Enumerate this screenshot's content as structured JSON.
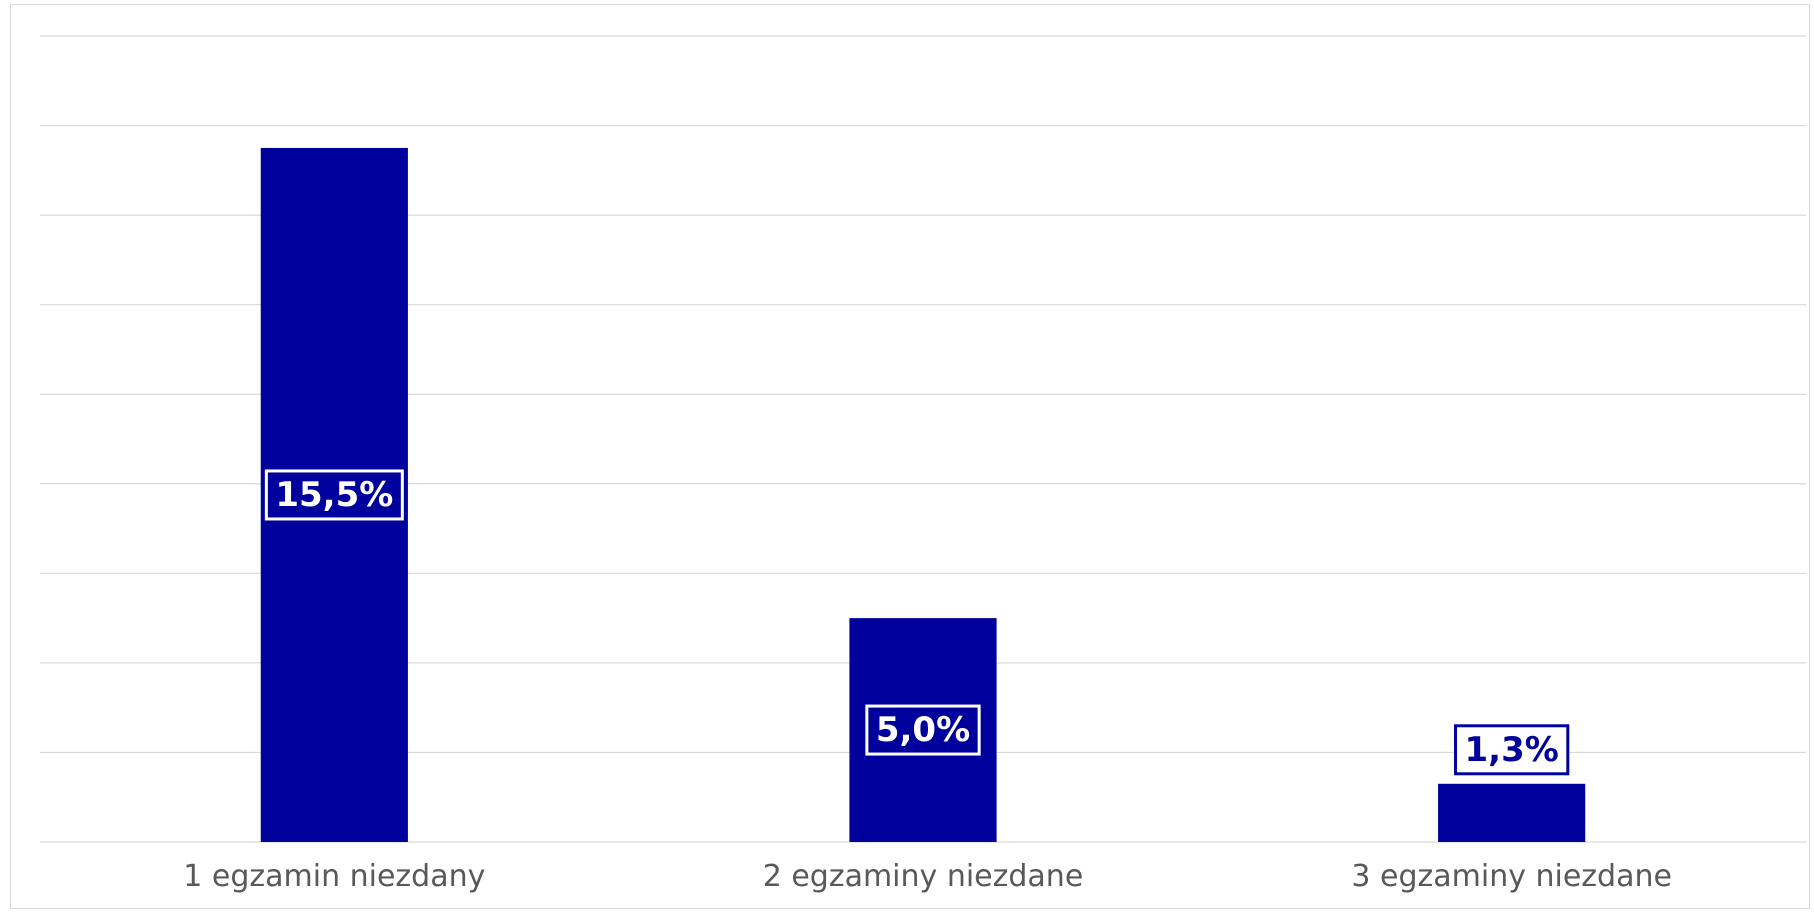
{
  "chart_data": {
    "type": "bar",
    "categories": [
      "1 egzamin niezdany",
      "2 egzaminy niezdane",
      "3 egzaminy niezdane"
    ],
    "values": [
      15.5,
      5.0,
      1.3
    ],
    "value_labels": [
      "15,5%",
      "5,0%",
      "1,3%"
    ],
    "unit": "%",
    "title": "",
    "xlabel": "",
    "ylabel": "",
    "ylim": [
      0,
      18
    ],
    "gridlines": true,
    "legend": "none",
    "bar_color": "#00009C",
    "grid_color": "#d9d9d9",
    "label_color_inside": "#ffffff",
    "label_color_outside": "#00009C"
  }
}
